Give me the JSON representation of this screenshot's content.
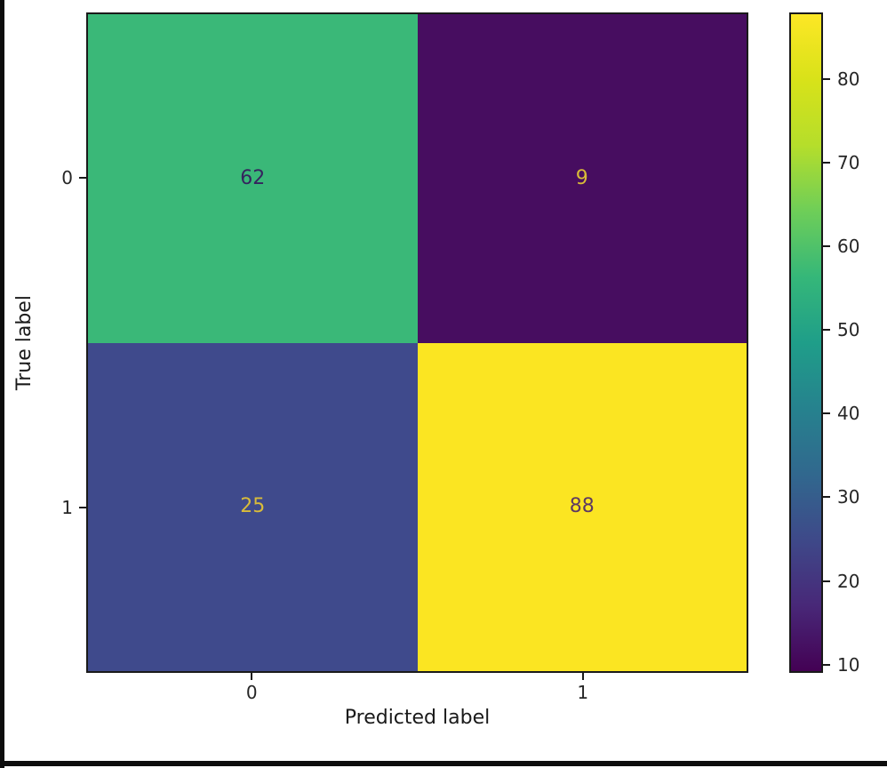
{
  "window": {
    "border_color": "#0d0d0d",
    "background": "#ffffff"
  },
  "chart_data": {
    "type": "heatmap",
    "subtype": "confusion-matrix",
    "title": "",
    "xlabel": "Predicted label",
    "ylabel": "True label",
    "x_categories": [
      "0",
      "1"
    ],
    "y_categories": [
      "0",
      "1"
    ],
    "matrix": [
      [
        62,
        9
      ],
      [
        25,
        88
      ]
    ],
    "vmin": 9,
    "vmax": 88,
    "colormap": "viridis",
    "grid": false,
    "legend": "none",
    "colorbar_position": "right",
    "cell_colors": [
      [
        "#3ab878",
        "#470d60"
      ],
      [
        "#3f4a8c",
        "#fbe522"
      ]
    ],
    "cell_text_colors": [
      [
        "#35245e",
        "#d8ba38"
      ],
      [
        "#d9bc3a",
        "#5e3a62"
      ]
    ],
    "colorbar_tick_values": [
      10,
      20,
      30,
      40,
      50,
      60,
      70,
      80
    ],
    "colorbar_tick_labels": [
      "10",
      "20",
      "30",
      "40",
      "50",
      "60",
      "70",
      "80"
    ],
    "viridis_stops": [
      "#440154",
      "#482878",
      "#3e4989",
      "#31688e",
      "#26828e",
      "#1f9e89",
      "#35b779",
      "#6ece58",
      "#b5de2b",
      "#d8e219",
      "#fde725"
    ]
  }
}
